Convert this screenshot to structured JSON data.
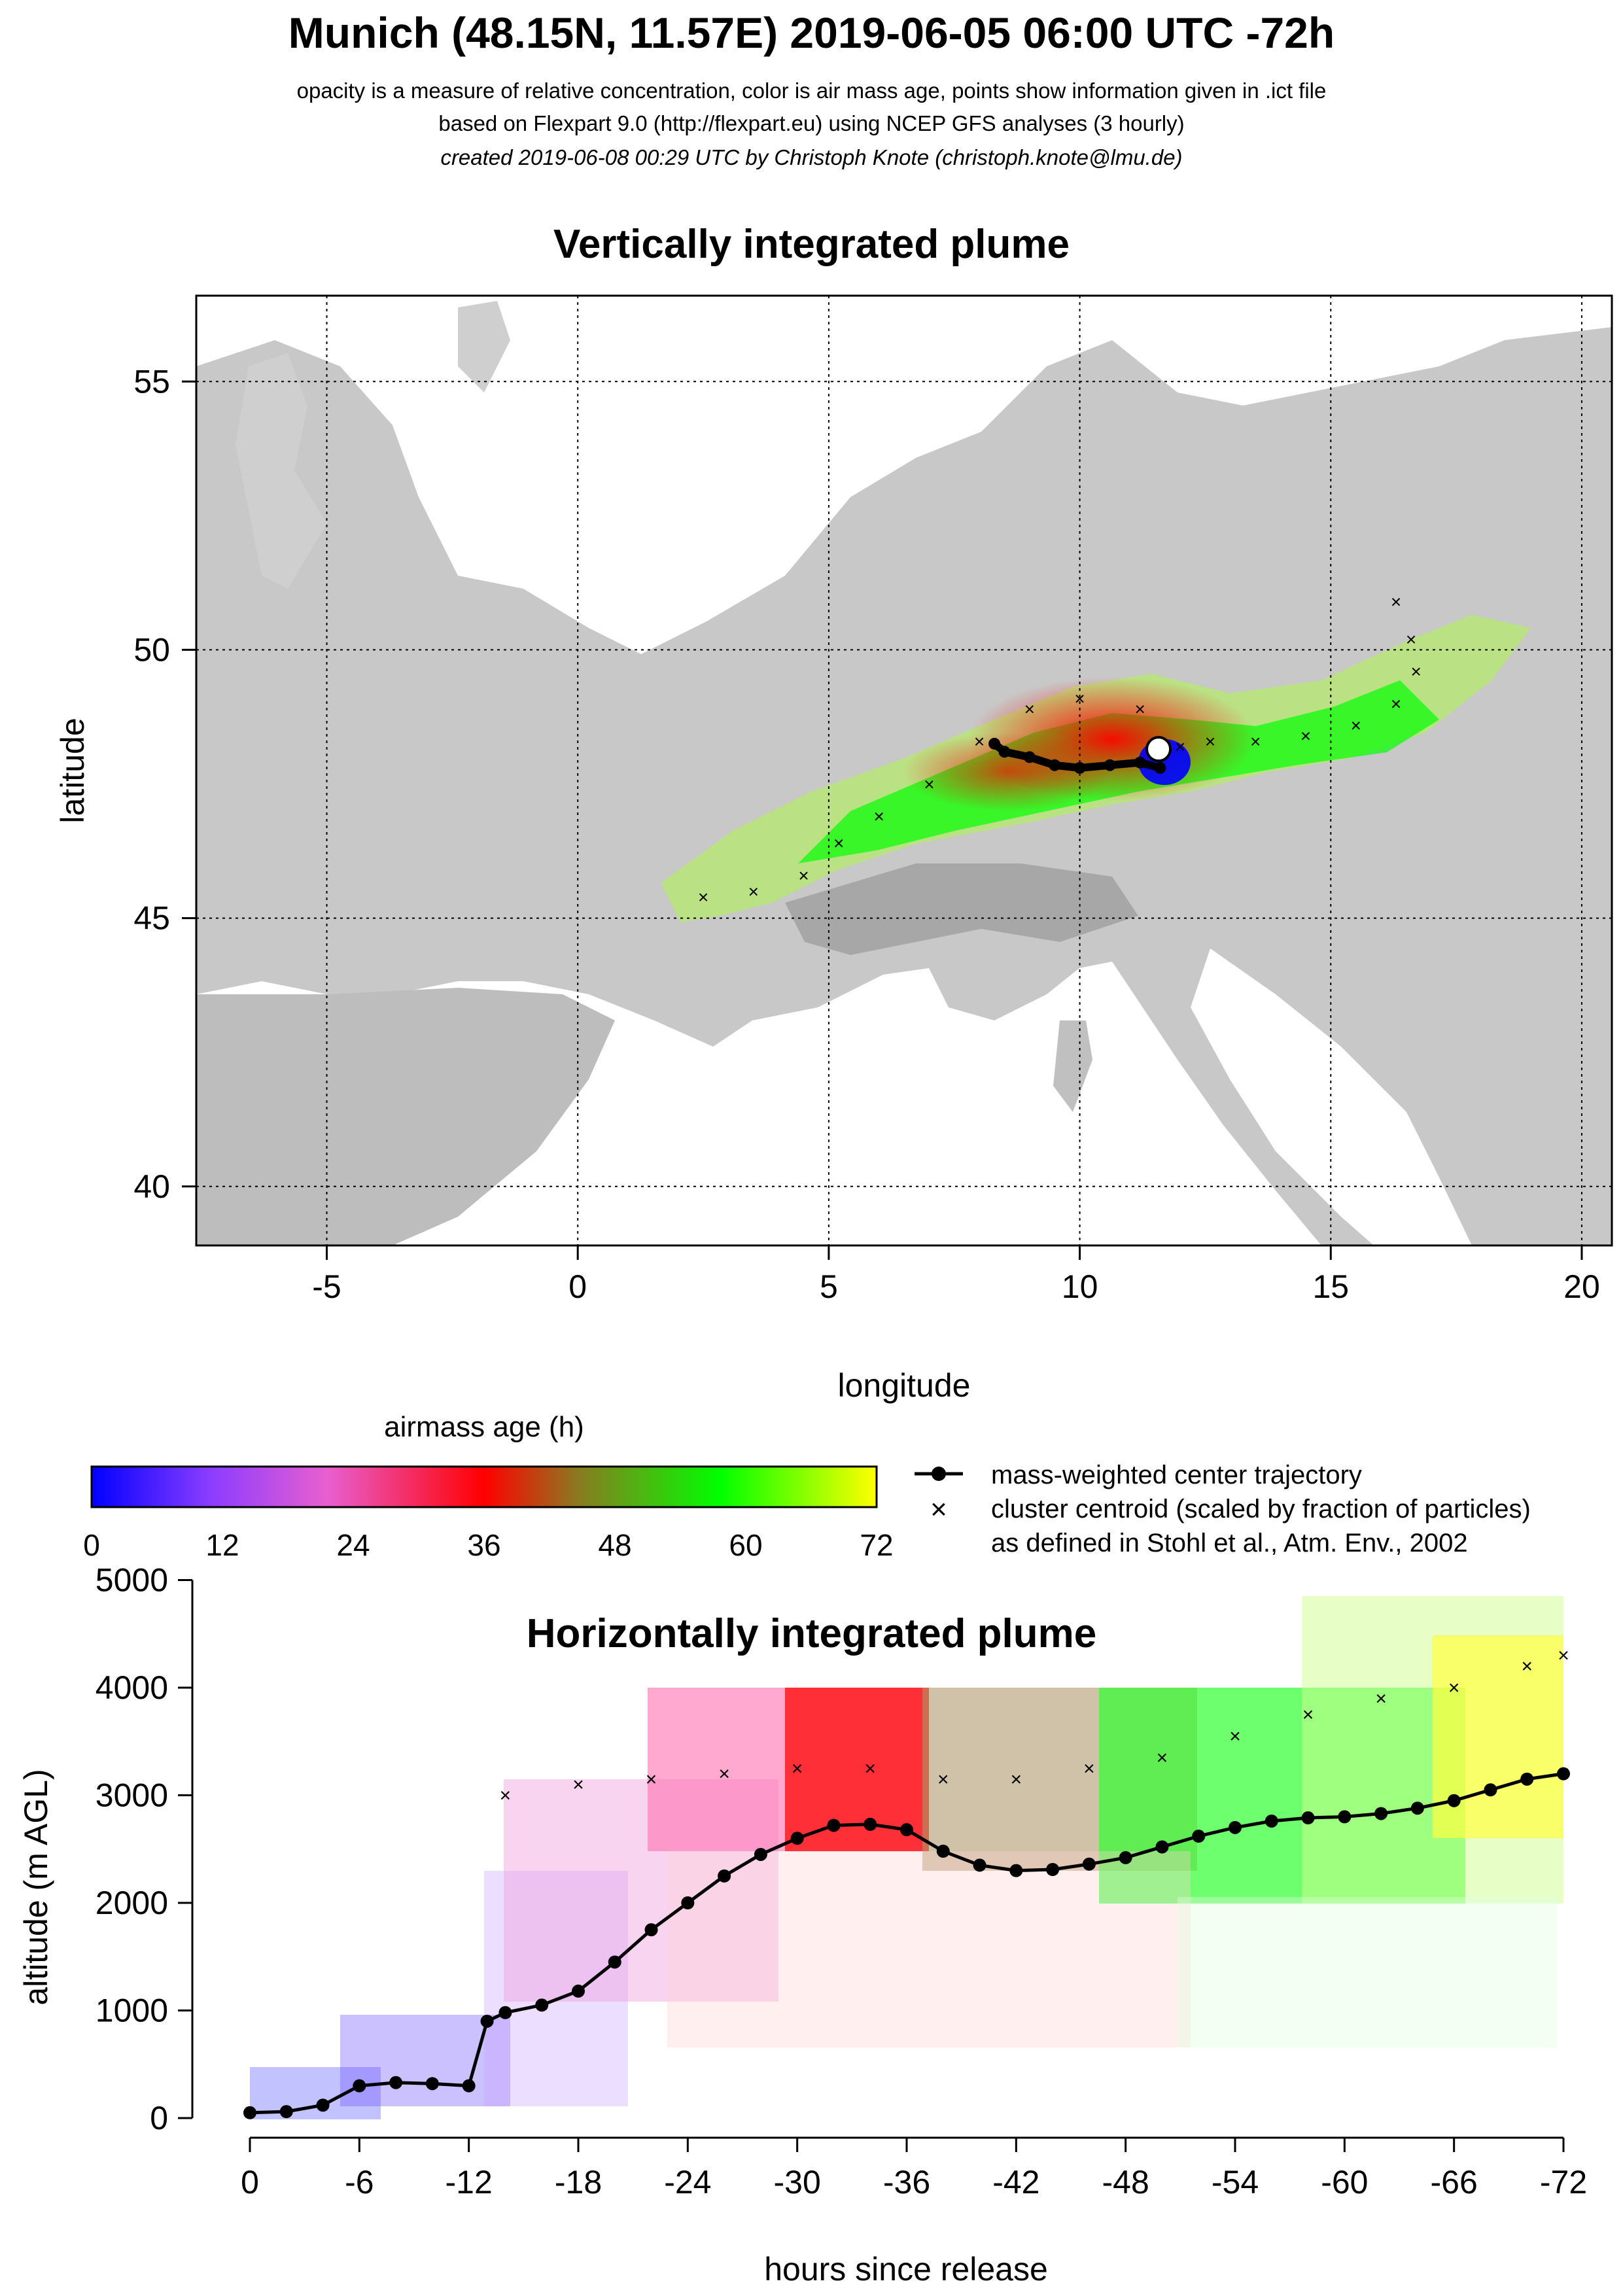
{
  "header": {
    "title": "Munich (48.15N, 11.57E) 2019-06-05 06:00 UTC -72h",
    "line1": "opacity is a measure of relative concentration, color is air mass age, points show information given in .ict file",
    "line2": "based on Flexpart 9.0 (http://flexpart.eu) using NCEP GFS analyses (3 hourly)",
    "line3": "created 2019-06-08 00:29 UTC by Christoph Knote (christoph.knote@lmu.de)"
  },
  "colors": {
    "land": "#c8c8c8",
    "background": "#ffffff",
    "young": "#0000ff",
    "mid": "#ff0000",
    "old_green": "#00ff00",
    "oldest": "#ffff00"
  },
  "chart_data": [
    {
      "type": "scatter",
      "title": "Vertically integrated plume",
      "xlabel": "longitude",
      "ylabel": "latitude",
      "xlim": [
        -7.6,
        20.6
      ],
      "ylim": [
        38.9,
        56.6
      ],
      "xticks": [
        "-5",
        "0",
        "5",
        "10",
        "15",
        "20"
      ],
      "yticks": [
        "40",
        "45",
        "50",
        "55"
      ],
      "grid": "dotted",
      "release_point": {
        "lon": 11.57,
        "lat": 48.15
      },
      "series": [
        {
          "name": "mass-weighted center trajectory",
          "x": [
            11.6,
            11.2,
            10.6,
            10.0,
            9.5,
            9.0,
            8.5,
            8.3
          ],
          "y": [
            47.8,
            47.9,
            47.85,
            47.8,
            47.85,
            48.0,
            48.1,
            48.25
          ]
        },
        {
          "name": "cluster centroid (scaled by fraction of particles)",
          "x": [
            12.0,
            12.6,
            13.5,
            14.5,
            15.5,
            16.3,
            16.7,
            16.6,
            16.3,
            11.2,
            10.0,
            9.0,
            8.0,
            7.0,
            6.0,
            5.2,
            4.5,
            3.5,
            2.5
          ],
          "y": [
            48.2,
            48.3,
            48.3,
            48.4,
            48.6,
            49.0,
            49.6,
            50.2,
            50.9,
            48.9,
            49.1,
            48.9,
            48.3,
            47.5,
            46.9,
            46.4,
            45.8,
            45.5,
            45.4
          ]
        }
      ]
    },
    {
      "type": "scatter",
      "title": "Horizontally integrated plume",
      "xlabel": "hours since release",
      "ylabel": "altitude (m AGL)",
      "xlim": [
        0,
        -72
      ],
      "ylim": [
        0,
        5000
      ],
      "xticks": [
        "0",
        "-6",
        "-12",
        "-18",
        "-24",
        "-30",
        "-36",
        "-42",
        "-48",
        "-54",
        "-60",
        "-66",
        "-72"
      ],
      "yticks": [
        "0",
        "1000",
        "2000",
        "3000",
        "4000",
        "5000"
      ],
      "series": [
        {
          "name": "mass-weighted center trajectory",
          "x": [
            0,
            -2,
            -4,
            -6,
            -8,
            -10,
            -12,
            -13,
            -14,
            -16,
            -18,
            -20,
            -22,
            -24,
            -26,
            -28,
            -30,
            -32,
            -34,
            -36,
            -38,
            -40,
            -42,
            -44,
            -46,
            -48,
            -50,
            -52,
            -54,
            -56,
            -58,
            -60,
            -62,
            -64,
            -66,
            -68,
            -70,
            -72
          ],
          "y": [
            50,
            60,
            120,
            300,
            330,
            320,
            300,
            900,
            980,
            1050,
            1180,
            1450,
            1750,
            2000,
            2250,
            2450,
            2600,
            2720,
            2730,
            2680,
            2480,
            2350,
            2300,
            2310,
            2360,
            2420,
            2520,
            2620,
            2700,
            2760,
            2790,
            2800,
            2830,
            2880,
            2950,
            3050,
            3150,
            3200
          ]
        },
        {
          "name": "cluster centroid (scaled by fraction of particles)",
          "x": [
            -14,
            -18,
            -22,
            -26,
            -30,
            -34,
            -38,
            -42,
            -46,
            -50,
            -54,
            -58,
            -62,
            -66,
            -70,
            -72
          ],
          "y": [
            3000,
            3100,
            3150,
            3200,
            3250,
            3250,
            3150,
            3150,
            3250,
            3350,
            3550,
            3750,
            3900,
            4000,
            4200,
            4300
          ]
        }
      ]
    }
  ],
  "colorbar": {
    "title": "airmass age (h)",
    "ticks": [
      "0",
      "12",
      "24",
      "36",
      "48",
      "60",
      "72"
    ],
    "range": [
      0,
      72
    ]
  },
  "legend": {
    "line_label": "mass-weighted center trajectory",
    "cross_label": "cluster centroid (scaled by fraction of particles)",
    "cross_label2": "as defined in Stohl et al., Atm. Env., 2002"
  }
}
